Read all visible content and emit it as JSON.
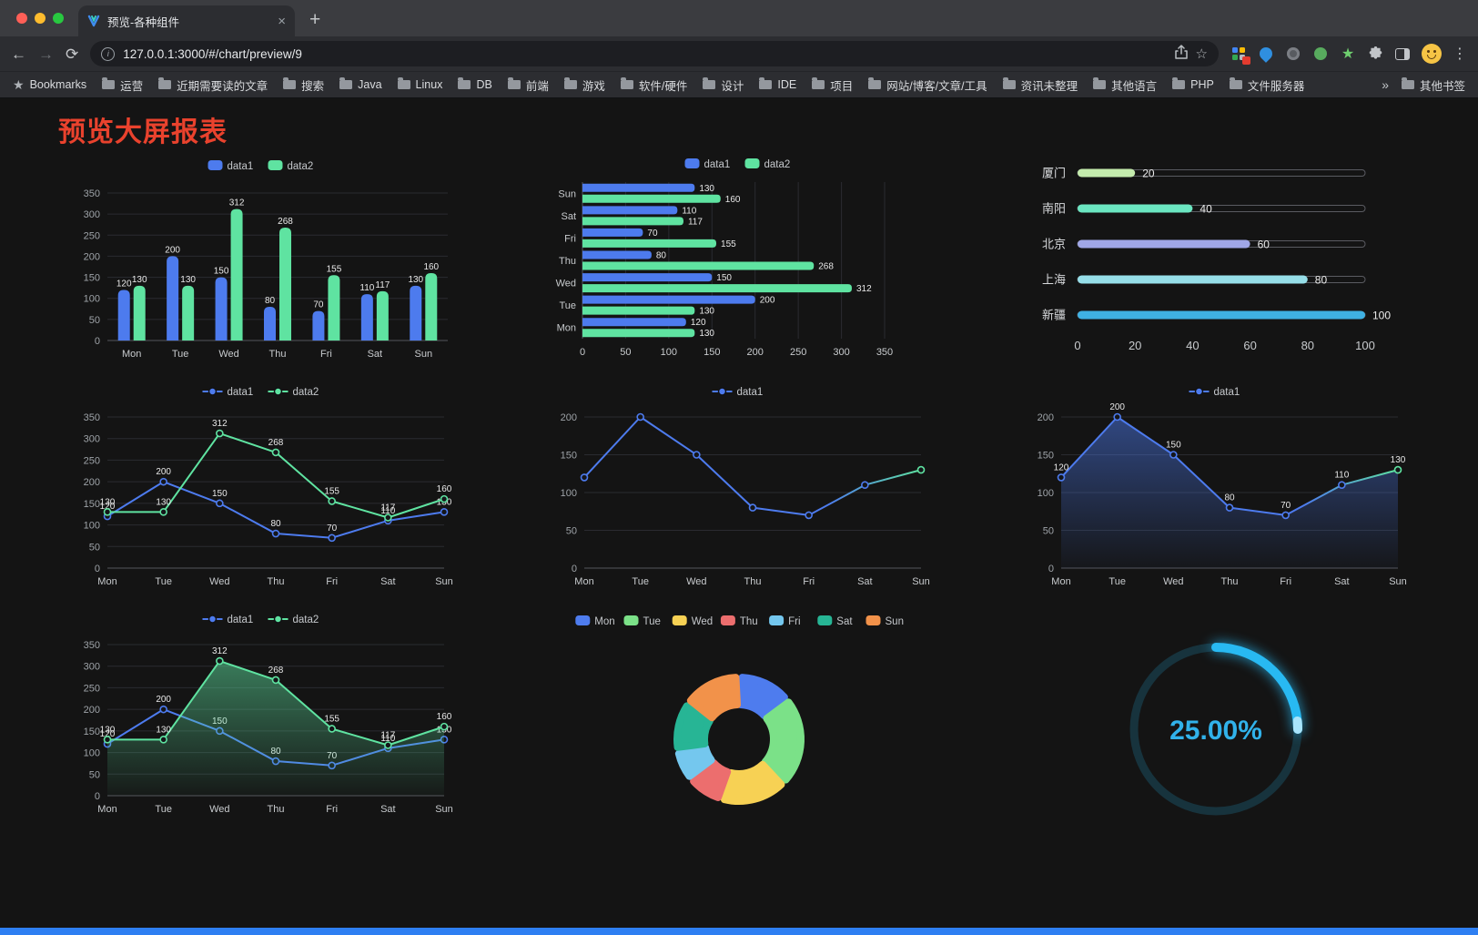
{
  "browser": {
    "tab_title": "预览-各种组件",
    "url": "127.0.0.1:3000/#/chart/preview/9",
    "new_tab_icon": "+",
    "tab_close_icon": "×",
    "back_icon": "←",
    "forward_icon": "→",
    "reload_icon": "⟳",
    "info_icon": "i",
    "share_icon": "⬆",
    "star_icon": "☆",
    "menu_icon": "⋮",
    "overflow_icon": "»",
    "bookmarks_star_icon": "★",
    "bookmarks_label": "Bookmarks",
    "bookmarks": [
      "运营",
      "近期需要读的文章",
      "搜索",
      "Java",
      "Linux",
      "DB",
      "前端",
      "游戏",
      "软件/硬件",
      "设计",
      "IDE",
      "项目",
      "网站/博客/文章/工具",
      "资讯未整理",
      "其他语言",
      "PHP",
      "文件服务器"
    ],
    "other_bookmarks_label": "其他书签"
  },
  "page": {
    "title": "预览大屏报表",
    "title_color": "#e9422d",
    "accent_blue": "#2e7ff2",
    "background": "#141414"
  },
  "chart_data": [
    {
      "type": "bar",
      "categories": [
        "Mon",
        "Tue",
        "Wed",
        "Thu",
        "Fri",
        "Sat",
        "Sun"
      ],
      "series": [
        {
          "name": "data1",
          "color": "#4d7bee",
          "values": [
            120,
            200,
            150,
            80,
            70,
            110,
            130
          ]
        },
        {
          "name": "data2",
          "color": "#5fe3a1",
          "values": [
            130,
            130,
            312,
            268,
            155,
            117,
            160
          ]
        }
      ],
      "ylim": [
        0,
        350
      ],
      "ytick": 50,
      "legend_position": "top",
      "grid": true
    },
    {
      "type": "hbar",
      "categories": [
        "Mon",
        "Tue",
        "Wed",
        "Thu",
        "Fri",
        "Sat",
        "Sun"
      ],
      "series": [
        {
          "name": "data1",
          "color": "#4d7bee",
          "values": [
            120,
            200,
            150,
            80,
            70,
            110,
            130
          ]
        },
        {
          "name": "data2",
          "color": "#5fe3a1",
          "values": [
            130,
            130,
            312,
            268,
            155,
            117,
            160
          ]
        }
      ],
      "xlim": [
        0,
        350
      ],
      "xtick": 50,
      "legend_position": "top",
      "grid": true
    },
    {
      "type": "capsule",
      "items": [
        {
          "name": "厦门",
          "value": 20,
          "color": "#c4ebad"
        },
        {
          "name": "南阳",
          "value": 40,
          "color": "#6be6c1"
        },
        {
          "name": "北京",
          "value": 60,
          "color": "#a0a7e6"
        },
        {
          "name": "上海",
          "value": 80,
          "color": "#96dee8"
        },
        {
          "name": "新疆",
          "value": 100,
          "color": "#3fb1e3"
        }
      ],
      "xlim": [
        0,
        100
      ],
      "xticks": [
        0,
        20,
        40,
        60,
        80,
        100
      ]
    },
    {
      "type": "line",
      "categories": [
        "Mon",
        "Tue",
        "Wed",
        "Thu",
        "Fri",
        "Sat",
        "Sun"
      ],
      "series": [
        {
          "name": "data1",
          "color": "#4d7bee",
          "values": [
            120,
            200,
            150,
            80,
            70,
            110,
            130
          ]
        },
        {
          "name": "data2",
          "color": "#5fe3a1",
          "values": [
            130,
            130,
            312,
            268,
            155,
            117,
            160
          ]
        }
      ],
      "ylim": [
        0,
        350
      ],
      "ytick": 50,
      "labels": true,
      "legend_position": "top",
      "grid": true
    },
    {
      "type": "line",
      "categories": [
        "Mon",
        "Tue",
        "Wed",
        "Thu",
        "Fri",
        "Sat",
        "Sun"
      ],
      "series": [
        {
          "name": "data1",
          "color": "#4d7bee",
          "gradient_to": "#5fe3a1",
          "values": [
            120,
            200,
            150,
            80,
            70,
            110,
            130
          ]
        }
      ],
      "ylim": [
        0,
        200
      ],
      "ytick": 50,
      "labels": false,
      "legend_position": "top",
      "grid": true
    },
    {
      "type": "line",
      "categories": [
        "Mon",
        "Tue",
        "Wed",
        "Thu",
        "Fri",
        "Sat",
        "Sun"
      ],
      "series": [
        {
          "name": "data1",
          "color": "#4d7bee",
          "gradient_to": "#5fe3a1",
          "area": true,
          "values": [
            120,
            200,
            150,
            80,
            70,
            110,
            130
          ]
        }
      ],
      "ylim": [
        0,
        200
      ],
      "ytick": 50,
      "labels": true,
      "legend_position": "top",
      "grid": true
    },
    {
      "type": "line",
      "categories": [
        "Mon",
        "Tue",
        "Wed",
        "Thu",
        "Fri",
        "Sat",
        "Sun"
      ],
      "series": [
        {
          "name": "data1",
          "color": "#4d7bee",
          "values": [
            120,
            200,
            150,
            80,
            70,
            110,
            130
          ]
        },
        {
          "name": "data2",
          "color": "#5fe3a1",
          "area": true,
          "values": [
            130,
            130,
            312,
            268,
            155,
            117,
            160
          ]
        }
      ],
      "ylim": [
        0,
        350
      ],
      "ytick": 50,
      "labels": true,
      "legend_position": "top",
      "grid": true
    },
    {
      "type": "pie",
      "subtype": "donut-rounded",
      "legend": [
        "Mon",
        "Tue",
        "Wed",
        "Thu",
        "Fri",
        "Sat",
        "Sun"
      ],
      "values": [
        120,
        200,
        150,
        80,
        70,
        110,
        130
      ],
      "colors": [
        "#4e7cee",
        "#7be188",
        "#f7d154",
        "#ec6e6e",
        "#74c7ee",
        "#27b595",
        "#f2924a"
      ],
      "legend_position": "top"
    },
    {
      "type": "gauge",
      "value": 25,
      "label": "25.00%",
      "color": "#28b9f2",
      "cap_color": "#a8e4fb",
      "track_color": "#17333d",
      "text_color": "#31b2ea"
    }
  ]
}
